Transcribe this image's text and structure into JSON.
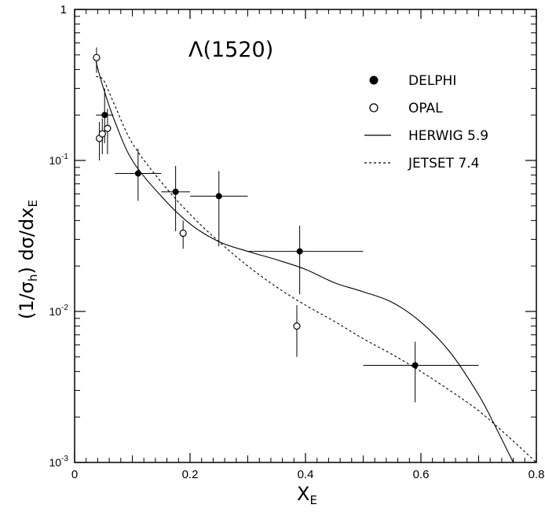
{
  "chart_data": {
    "type": "scatter",
    "title": "Λ(1520)",
    "xlabel": "X",
    "xlabel_sub": "E",
    "ylabel": "(1/σ",
    "ylabel_sub1": "h",
    "ylabel_mid": ") dσ/dx",
    "ylabel_sub2": "E",
    "xlim": [
      0,
      0.8
    ],
    "ylim": [
      0.001,
      1
    ],
    "yscale": "log",
    "grid": false,
    "legend_position": "top-right",
    "x_ticks": [
      {
        "value": 0,
        "label": "0"
      },
      {
        "value": 0.2,
        "label": "0.2"
      },
      {
        "value": 0.4,
        "label": "0.4"
      },
      {
        "value": 0.6,
        "label": "0.6"
      },
      {
        "value": 0.8,
        "label": "0.8"
      }
    ],
    "y_ticks": [
      {
        "value": 1,
        "label": "1",
        "exp": ""
      },
      {
        "value": 0.1,
        "label": "10",
        "exp": "-1"
      },
      {
        "value": 0.01,
        "label": "10",
        "exp": "-2"
      },
      {
        "value": 0.001,
        "label": "10",
        "exp": "-3"
      }
    ],
    "series": [
      {
        "name": "DELPHI",
        "kind": "points-filled",
        "points": [
          {
            "x": 0.052,
            "y": 0.2,
            "xlo": 0.037,
            "xhi": 0.067,
            "ylo": 0.13,
            "yhi": 0.3
          },
          {
            "x": 0.11,
            "y": 0.082,
            "xlo": 0.07,
            "xhi": 0.15,
            "ylo": 0.054,
            "yhi": 0.12
          },
          {
            "x": 0.175,
            "y": 0.062,
            "xlo": 0.15,
            "xhi": 0.2,
            "ylo": 0.034,
            "yhi": 0.092
          },
          {
            "x": 0.25,
            "y": 0.058,
            "xlo": 0.2,
            "xhi": 0.3,
            "ylo": 0.027,
            "yhi": 0.085
          },
          {
            "x": 0.39,
            "y": 0.025,
            "xlo": 0.3,
            "xhi": 0.5,
            "ylo": 0.013,
            "yhi": 0.037
          },
          {
            "x": 0.59,
            "y": 0.0044,
            "xlo": 0.5,
            "xhi": 0.7,
            "ylo": 0.0025,
            "yhi": 0.0063
          }
        ]
      },
      {
        "name": "OPAL",
        "kind": "points-open",
        "points": [
          {
            "x": 0.038,
            "y": 0.48,
            "ylo": 0.38,
            "yhi": 0.56
          },
          {
            "x": 0.043,
            "y": 0.14,
            "ylo": 0.1,
            "yhi": 0.18
          },
          {
            "x": 0.048,
            "y": 0.15,
            "ylo": 0.11,
            "yhi": 0.19
          },
          {
            "x": 0.057,
            "y": 0.163,
            "ylo": 0.11,
            "yhi": 0.22
          },
          {
            "x": 0.188,
            "y": 0.033,
            "ylo": 0.026,
            "yhi": 0.04
          },
          {
            "x": 0.385,
            "y": 0.008,
            "ylo": 0.005,
            "yhi": 0.011
          }
        ]
      },
      {
        "name": "HERWIG 5.9",
        "kind": "line-solid",
        "points": [
          {
            "x": 0.037,
            "y": 0.45
          },
          {
            "x": 0.05,
            "y": 0.3
          },
          {
            "x": 0.07,
            "y": 0.18
          },
          {
            "x": 0.1,
            "y": 0.1
          },
          {
            "x": 0.15,
            "y": 0.058
          },
          {
            "x": 0.2,
            "y": 0.038
          },
          {
            "x": 0.25,
            "y": 0.029
          },
          {
            "x": 0.3,
            "y": 0.025
          },
          {
            "x": 0.35,
            "y": 0.022
          },
          {
            "x": 0.4,
            "y": 0.019
          },
          {
            "x": 0.45,
            "y": 0.0155
          },
          {
            "x": 0.5,
            "y": 0.0135
          },
          {
            "x": 0.55,
            "y": 0.0115
          },
          {
            "x": 0.6,
            "y": 0.0085
          },
          {
            "x": 0.65,
            "y": 0.0054
          },
          {
            "x": 0.7,
            "y": 0.0028
          },
          {
            "x": 0.73,
            "y": 0.0017
          },
          {
            "x": 0.76,
            "y": 0.001
          }
        ]
      },
      {
        "name": "JETSET 7.4",
        "kind": "line-dashed",
        "points": [
          {
            "x": 0.037,
            "y": 0.36
          },
          {
            "x": 0.05,
            "y": 0.34
          },
          {
            "x": 0.07,
            "y": 0.23
          },
          {
            "x": 0.1,
            "y": 0.13
          },
          {
            "x": 0.15,
            "y": 0.072
          },
          {
            "x": 0.2,
            "y": 0.044
          },
          {
            "x": 0.25,
            "y": 0.029
          },
          {
            "x": 0.3,
            "y": 0.02
          },
          {
            "x": 0.35,
            "y": 0.0145
          },
          {
            "x": 0.4,
            "y": 0.011
          },
          {
            "x": 0.45,
            "y": 0.0086
          },
          {
            "x": 0.5,
            "y": 0.0066
          },
          {
            "x": 0.55,
            "y": 0.0052
          },
          {
            "x": 0.6,
            "y": 0.004
          },
          {
            "x": 0.65,
            "y": 0.003
          },
          {
            "x": 0.7,
            "y": 0.0022
          },
          {
            "x": 0.75,
            "y": 0.0015
          },
          {
            "x": 0.8,
            "y": 0.001
          }
        ]
      }
    ]
  }
}
